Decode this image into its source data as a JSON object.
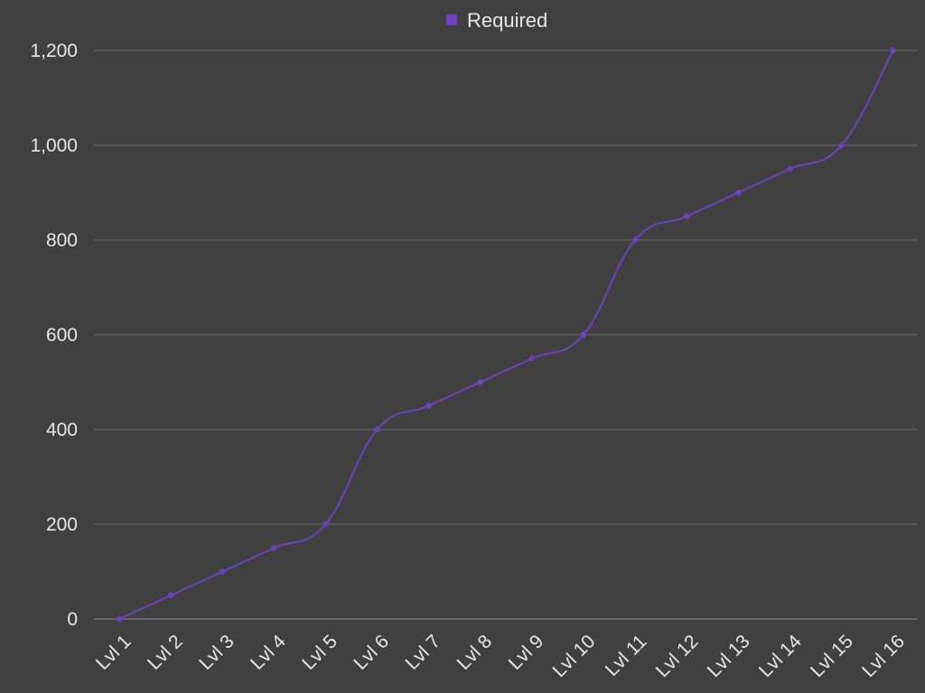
{
  "chart_data": {
    "type": "line",
    "title": "",
    "xlabel": "",
    "ylabel": "",
    "categories": [
      "Lvl 1",
      "Lvl 2",
      "Lvl 3",
      "Lvl 4",
      "Lvl 5",
      "Lvl 6",
      "Lvl 7",
      "Lvl 8",
      "Lvl 9",
      "Lvl 10",
      "Lvl 11",
      "Lvl 12",
      "Lvl 13",
      "Lvl 14",
      "Lvl 15",
      "Lvl 16"
    ],
    "series": [
      {
        "name": "Required",
        "color": "#6f42c1",
        "smooth": true,
        "values": [
          0,
          50,
          100,
          150,
          200,
          400,
          450,
          500,
          550,
          600,
          800,
          850,
          900,
          950,
          1000,
          1200
        ]
      }
    ],
    "ylim": [
      0,
      1200
    ],
    "yticks": [
      0,
      200,
      400,
      600,
      800,
      1000,
      1200
    ],
    "ytick_labels": [
      "0",
      "200",
      "400",
      "600",
      "800",
      "1,000",
      "1,200"
    ],
    "grid": "horizontal",
    "legend_position": "top-center",
    "background": "#404040"
  }
}
